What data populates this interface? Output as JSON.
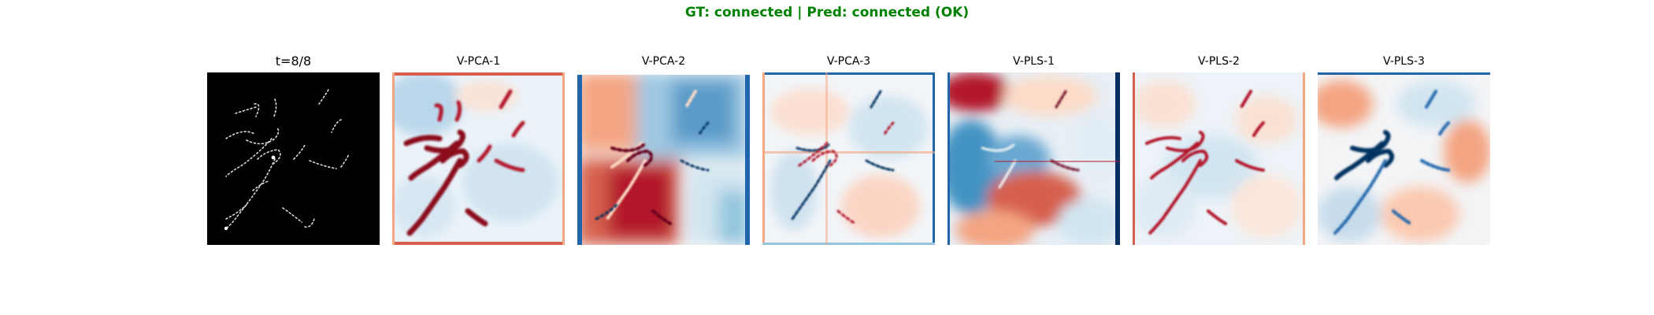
{
  "figure": {
    "suptitle": "GT: connected | Pred: connected (OK)",
    "panels": [
      {
        "title": "t=8/8",
        "kind": "input",
        "colormap": "gray"
      },
      {
        "title": "V-PCA-1",
        "kind": "heatmap",
        "colormap": "RdBu"
      },
      {
        "title": "V-PCA-2",
        "kind": "heatmap",
        "colormap": "RdBu"
      },
      {
        "title": "V-PCA-3",
        "kind": "heatmap",
        "colormap": "RdBu"
      },
      {
        "title": "V-PLS-1",
        "kind": "heatmap",
        "colormap": "RdBu"
      },
      {
        "title": "V-PLS-2",
        "kind": "heatmap",
        "colormap": "RdBu"
      },
      {
        "title": "V-PLS-3",
        "kind": "heatmap",
        "colormap": "RdBu"
      }
    ]
  },
  "colors": {
    "suptitle_ok": "#008000",
    "red_dark": "#67001f",
    "red": "#b2182b",
    "red_light": "#f4a582",
    "neutral": "#f7f7f7",
    "blue_light": "#92c5de",
    "blue": "#2166ac",
    "blue_dark": "#053061",
    "input_bg": "#000000",
    "input_fg": "#d9d9d9"
  }
}
